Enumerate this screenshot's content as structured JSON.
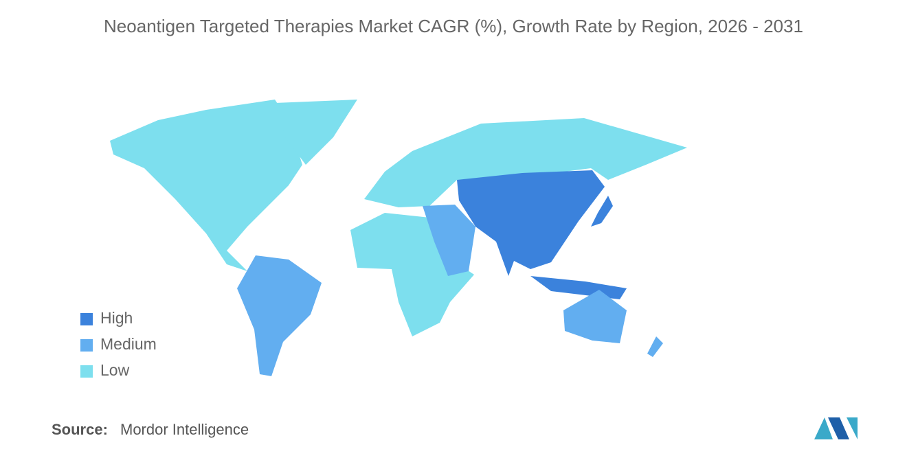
{
  "title": "Neoantigen Targeted Therapies Market CAGR (%), Growth Rate by Region, 2026 - 2031",
  "legend": [
    {
      "label": "High",
      "color": "#3b82dc"
    },
    {
      "label": "Medium",
      "color": "#62aef0"
    },
    {
      "label": "Low",
      "color": "#7ddfee"
    }
  ],
  "source": {
    "label": "Source:",
    "name": "Mordor Intelligence"
  }
}
